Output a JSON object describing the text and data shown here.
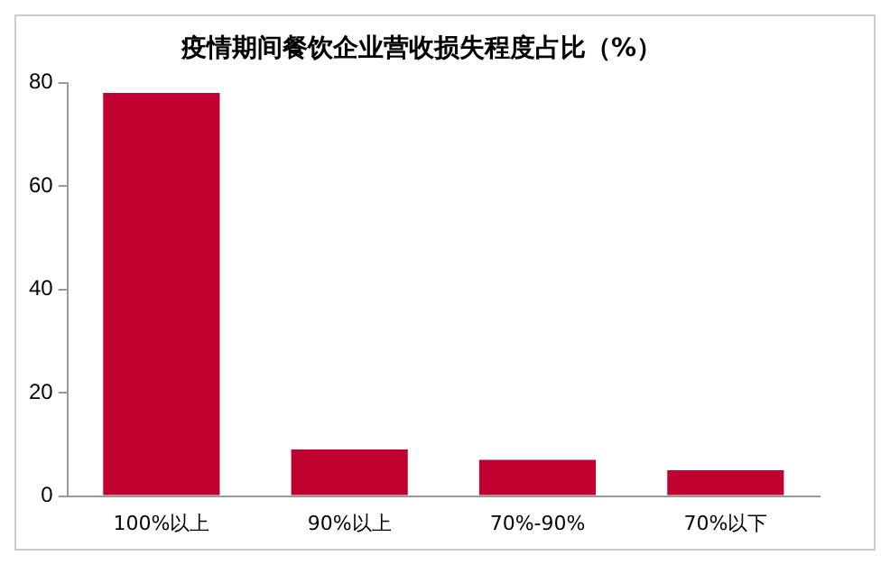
{
  "chart_data": {
    "type": "bar",
    "title": "疫情期间餐饮企业营收损失程度占比（%）",
    "categories": [
      "100%以上",
      "90%以上",
      "70%-90%",
      "70%以下"
    ],
    "values": [
      78,
      9,
      7,
      5
    ],
    "color": "#c0002f",
    "ylim": [
      0,
      80
    ],
    "yticks": [
      0,
      20,
      40,
      60,
      80
    ],
    "grid": false,
    "legend": false
  }
}
